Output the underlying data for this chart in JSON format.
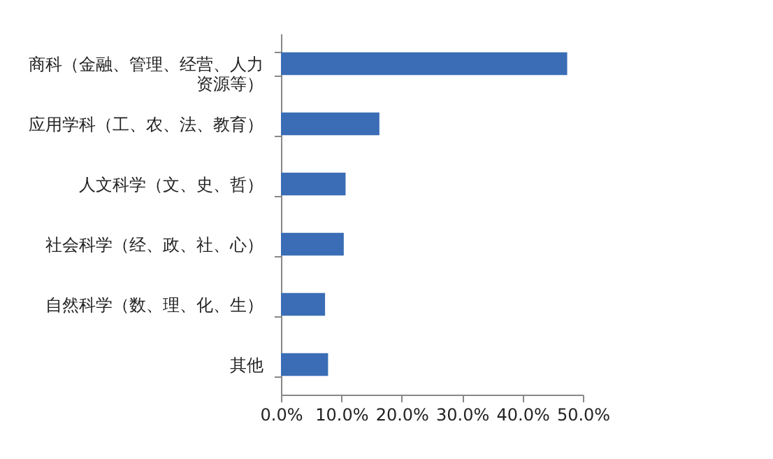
{
  "chart_data": {
    "type": "bar",
    "orientation": "horizontal",
    "categories": [
      "商科（金融、管理、经营、人力资源等）",
      "应用学科（工、农、法、教育）",
      "人文科学（文、史、哲）",
      "社会科学（经、政、社、心）",
      "自然科学（数、理、化、生）",
      "其他"
    ],
    "values": [
      47.4,
      16.3,
      10.7,
      10.4,
      7.3,
      7.8
    ],
    "color": "#3a6db5",
    "xlim": [
      0,
      50
    ],
    "xticks": [
      {
        "value": 0,
        "label": "0.0%"
      },
      {
        "value": 10,
        "label": "10.0%"
      },
      {
        "value": 20,
        "label": "20.0%"
      },
      {
        "value": 30,
        "label": "30.0%"
      },
      {
        "value": 40,
        "label": "40.0%"
      },
      {
        "value": 50,
        "label": "50.0%"
      }
    ],
    "grid": false
  }
}
